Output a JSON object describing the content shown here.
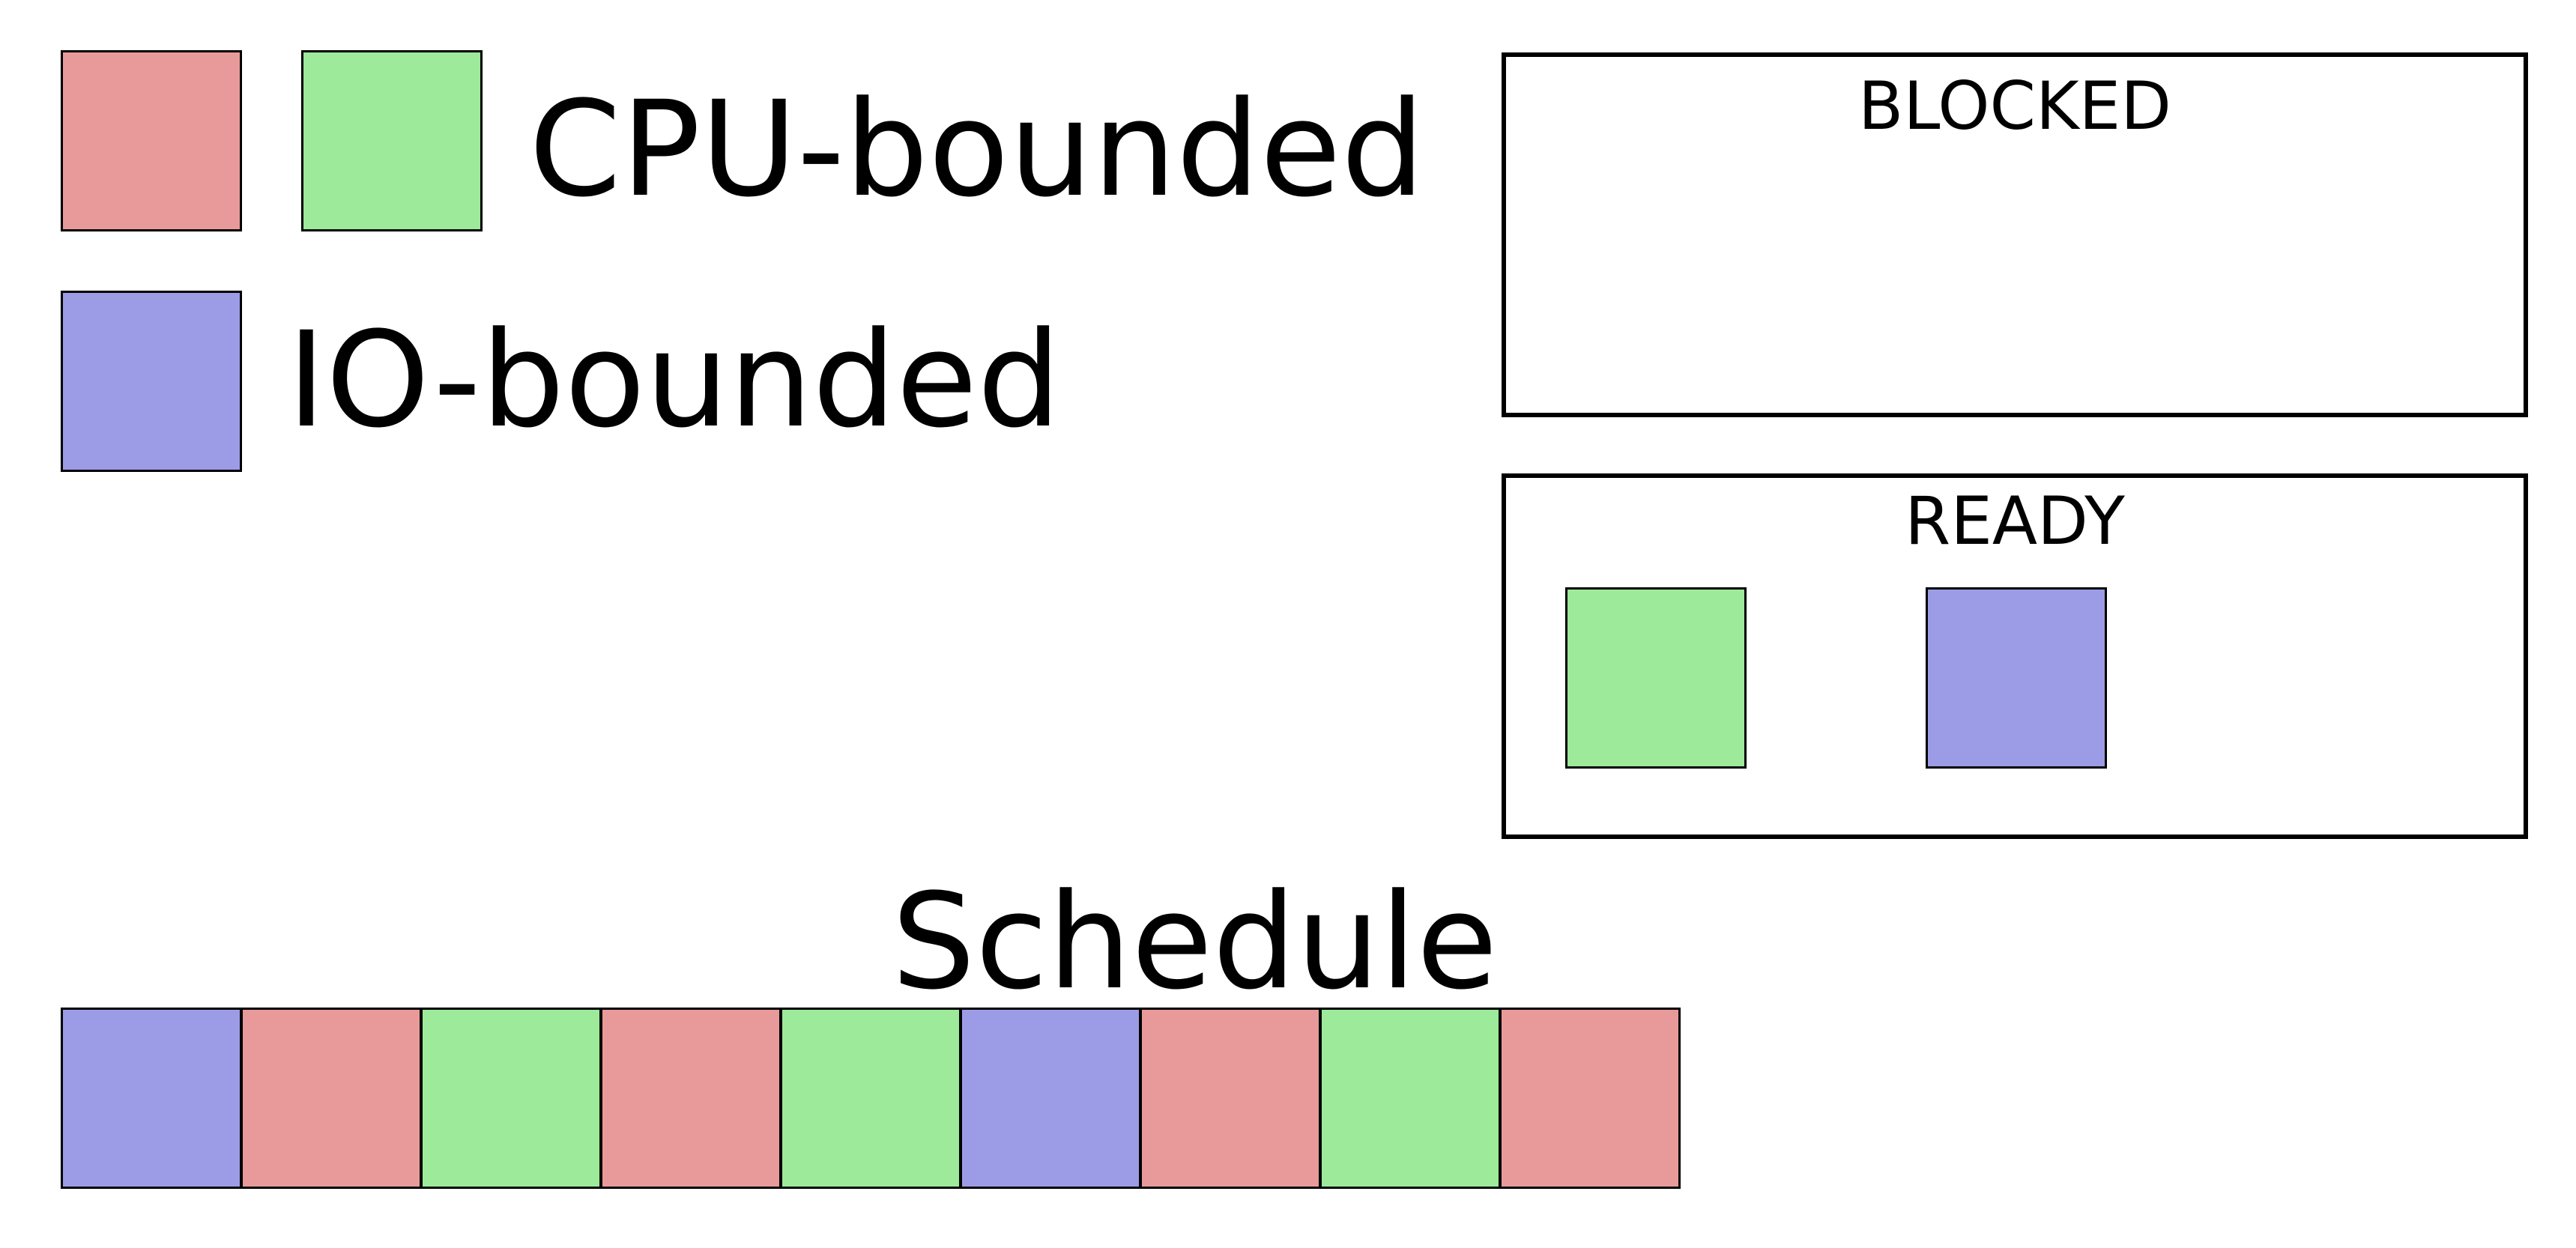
{
  "colors": {
    "cpu_a": "#e89a9a",
    "cpu_b": "#9cea9a",
    "io": "#9c9ce6",
    "border": "#000000",
    "background": "#ffffff"
  },
  "legend": {
    "cpu": {
      "label": "CPU-bounded",
      "swatches": [
        "cpu_a",
        "cpu_b"
      ]
    },
    "io": {
      "label": "IO-bounded",
      "swatches": [
        "io"
      ]
    }
  },
  "states": {
    "blocked": {
      "title": "BLOCKED",
      "items": []
    },
    "ready": {
      "title": "READY",
      "items": [
        "cpu_b",
        "io"
      ]
    }
  },
  "schedule": {
    "title": "Schedule",
    "slots": [
      "io",
      "cpu_a",
      "cpu_b",
      "cpu_a",
      "cpu_b",
      "io",
      "cpu_a",
      "cpu_b",
      "cpu_a"
    ]
  }
}
